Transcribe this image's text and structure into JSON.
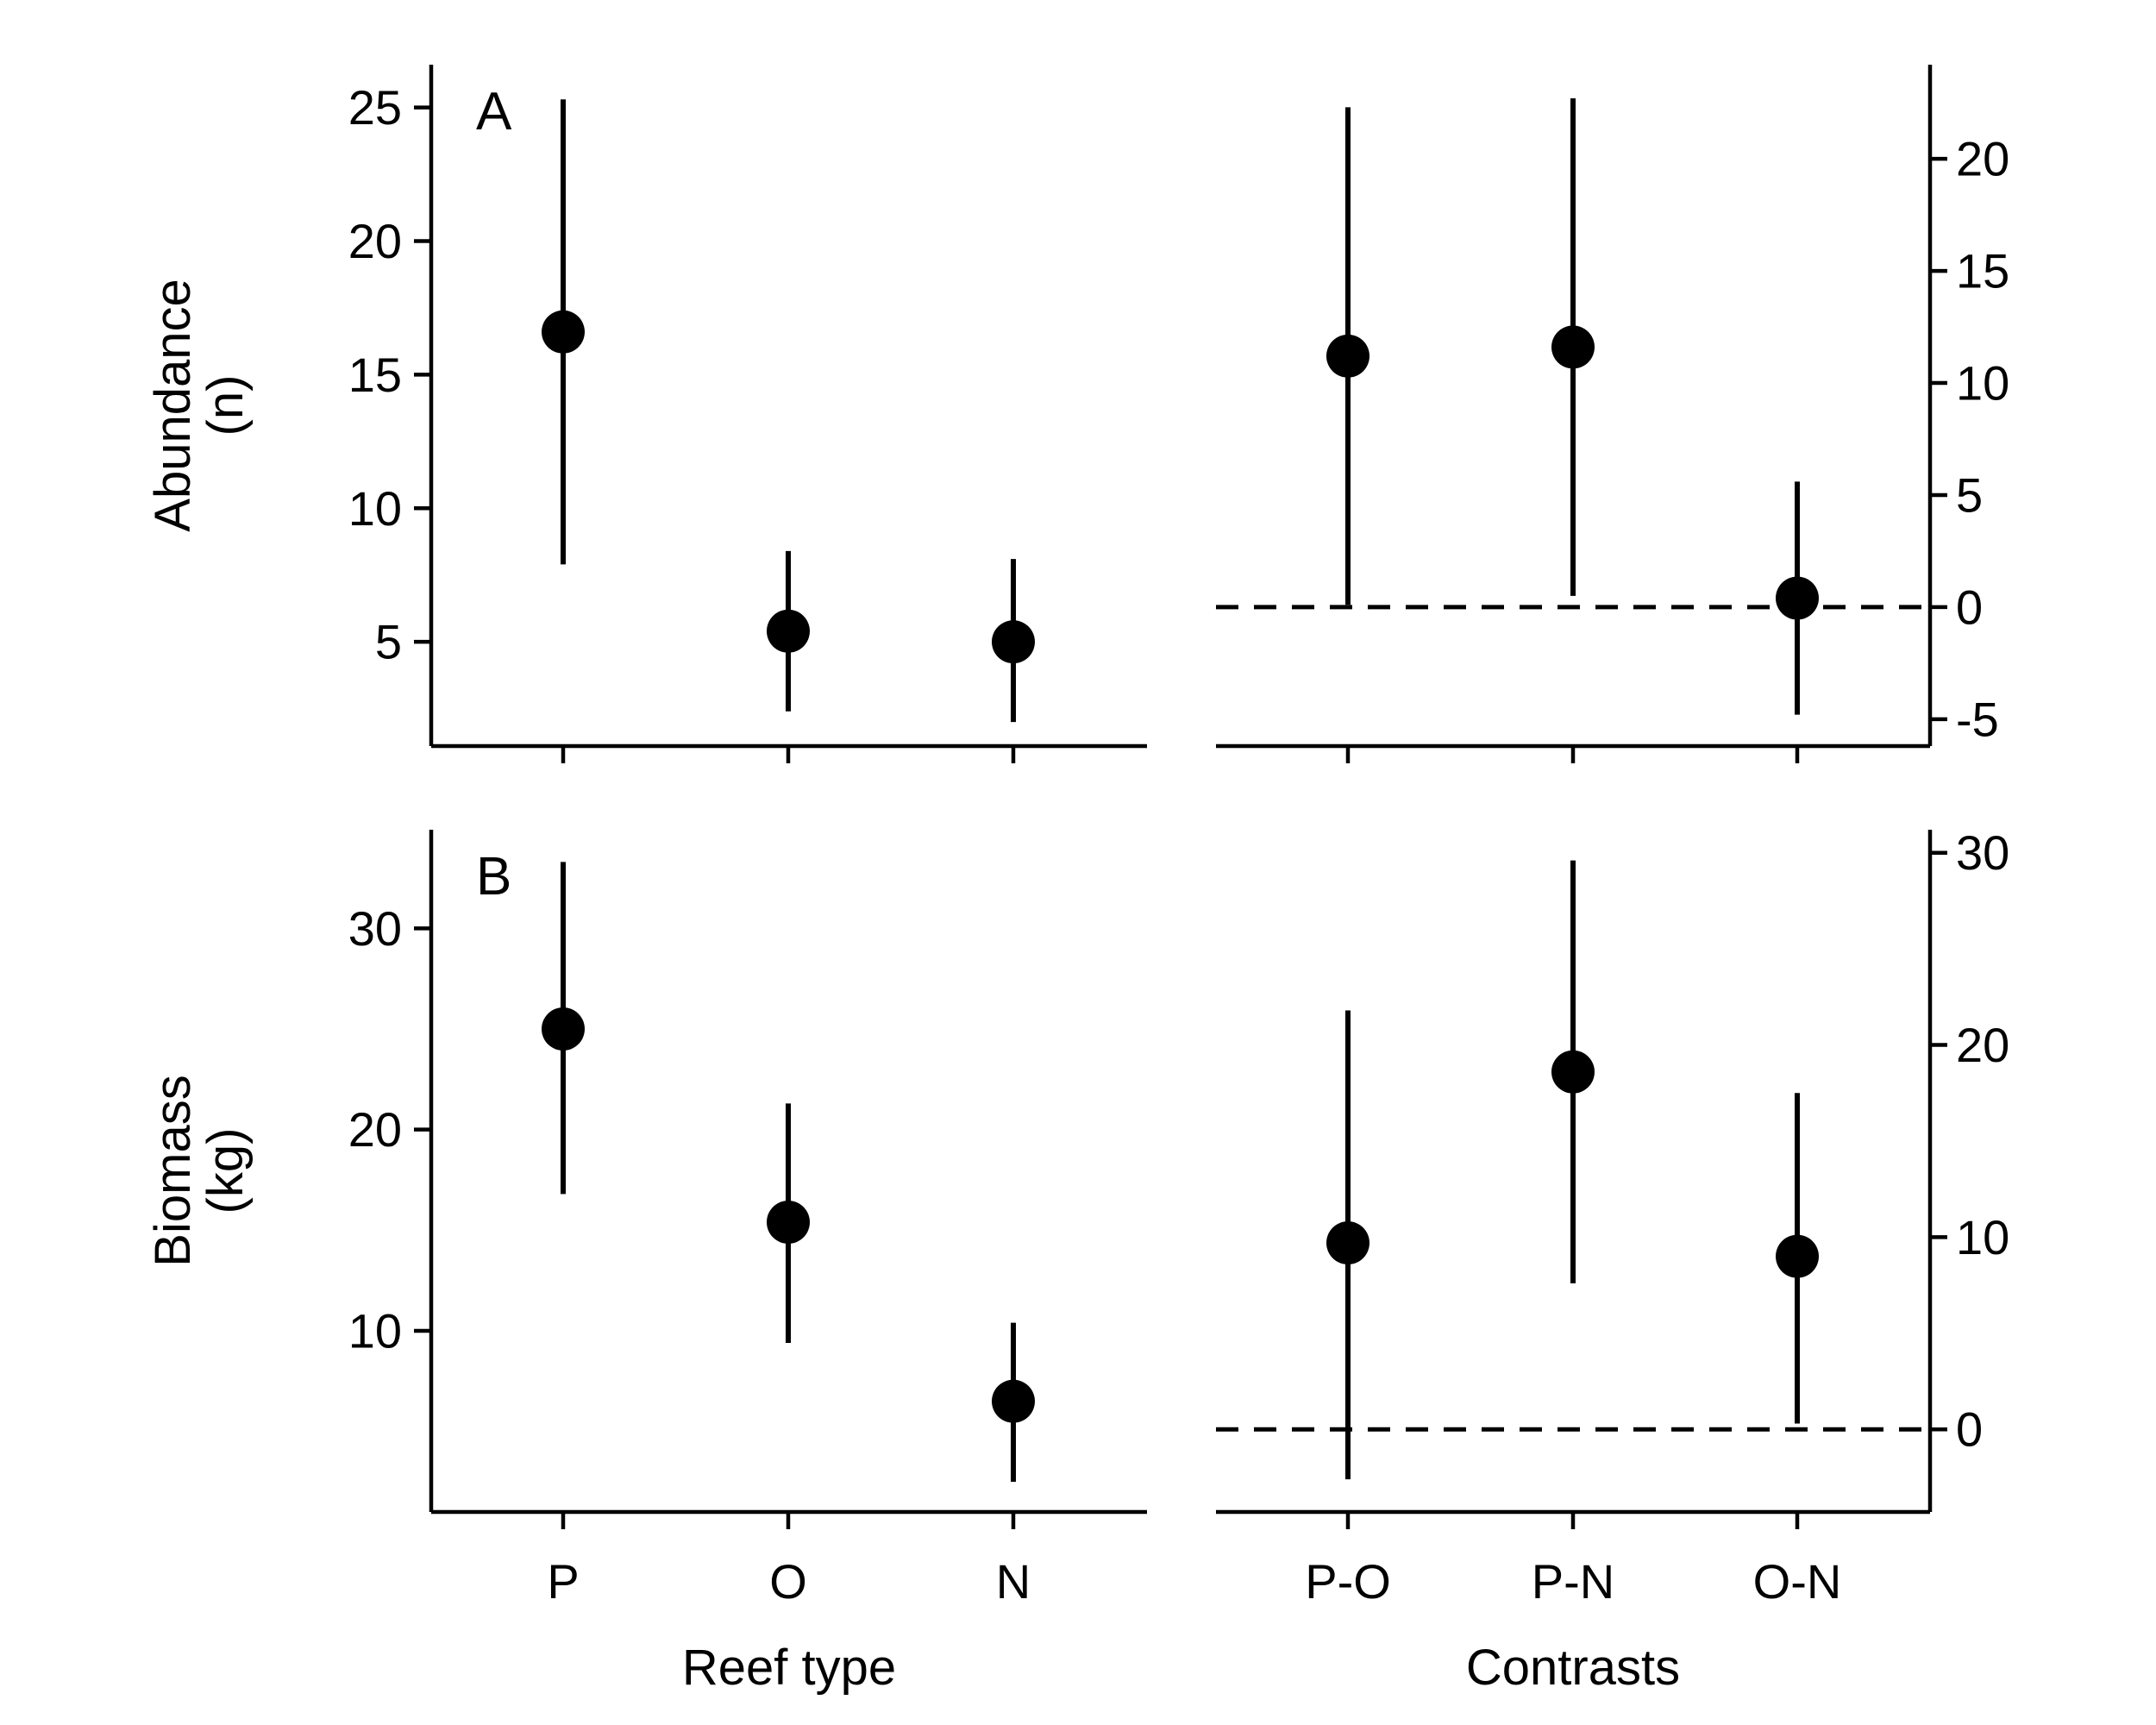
{
  "chart_data": [
    {
      "type": "scatter",
      "panel": "A",
      "label": "A",
      "ylabel_lines": [
        "Abundance",
        "(n)"
      ],
      "xlabel": "",
      "categories": [
        "P",
        "O",
        "N"
      ],
      "yticks": [
        5,
        10,
        15,
        20,
        25
      ],
      "ylim": [
        1.1,
        26.6
      ],
      "axis_side": "left",
      "estimates": [
        16.6,
        5.4,
        5.0
      ],
      "lower": [
        7.9,
        2.4,
        2.0
      ],
      "upper": [
        25.3,
        8.4,
        8.1
      ]
    },
    {
      "type": "scatter",
      "panel": "A-contrasts",
      "label": "",
      "categories": [
        "P-O",
        "P-N",
        "O-N"
      ],
      "yticks": [
        -5,
        0,
        5,
        10,
        15,
        20
      ],
      "ylim": [
        -6.2,
        24.2
      ],
      "axis_side": "right",
      "reference_line": 0,
      "estimates": [
        11.2,
        11.6,
        0.4
      ],
      "lower": [
        0.1,
        0.5,
        -4.8
      ],
      "upper": [
        22.3,
        22.7,
        5.6
      ]
    },
    {
      "type": "scatter",
      "panel": "B",
      "label": "B",
      "ylabel_lines": [
        "Biomass",
        "(kg)"
      ],
      "xlabel": "Reef type",
      "categories": [
        "P",
        "O",
        "N"
      ],
      "yticks": [
        10,
        20,
        30
      ],
      "ylim": [
        1.0,
        34.9
      ],
      "axis_side": "left",
      "estimates": [
        25.0,
        15.4,
        6.5
      ],
      "lower": [
        16.8,
        9.4,
        2.5
      ],
      "upper": [
        33.3,
        21.3,
        10.4
      ]
    },
    {
      "type": "scatter",
      "panel": "B-contrasts",
      "label": "",
      "xlabel": "Contrasts",
      "categories": [
        "P-O",
        "P-N",
        "O-N"
      ],
      "yticks": [
        0,
        10,
        20,
        30
      ],
      "ylim": [
        -4.3,
        31.2
      ],
      "axis_side": "right",
      "reference_line": 0,
      "estimates": [
        9.7,
        18.6,
        9.0
      ],
      "lower": [
        -2.6,
        7.6,
        0.3
      ],
      "upper": [
        21.8,
        29.6,
        17.5
      ]
    }
  ]
}
